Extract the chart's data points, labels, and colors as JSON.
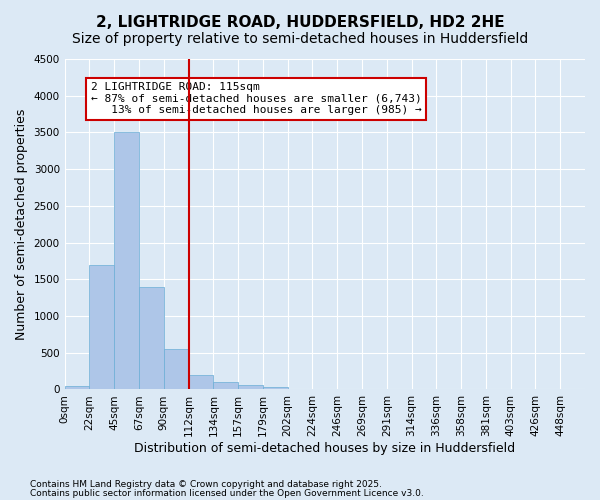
{
  "title1": "2, LIGHTRIDGE ROAD, HUDDERSFIELD, HD2 2HE",
  "title2": "Size of property relative to semi-detached houses in Huddersfield",
  "xlabel": "Distribution of semi-detached houses by size in Huddersfield",
  "ylabel": "Number of semi-detached properties",
  "footnote1": "Contains HM Land Registry data © Crown copyright and database right 2025.",
  "footnote2": "Contains public sector information licensed under the Open Government Licence v3.0.",
  "bin_labels": [
    "0sqm",
    "22sqm",
    "45sqm",
    "67sqm",
    "90sqm",
    "112sqm",
    "134sqm",
    "157sqm",
    "179sqm",
    "202sqm",
    "224sqm",
    "246sqm",
    "269sqm",
    "291sqm",
    "314sqm",
    "336sqm",
    "358sqm",
    "381sqm",
    "403sqm",
    "426sqm",
    "448sqm"
  ],
  "bar_heights": [
    50,
    1700,
    3500,
    1400,
    550,
    200,
    100,
    55,
    30,
    10,
    0,
    0,
    0,
    0,
    0,
    0,
    0,
    0,
    0,
    0
  ],
  "bar_color": "#aec6e8",
  "bar_edge_color": "#6aaed6",
  "vline_x": 5,
  "vline_color": "#cc0000",
  "annotation_box_text": "2 LIGHTRIDGE ROAD: 115sqm\n← 87% of semi-detached houses are smaller (6,743)\n   13% of semi-detached houses are larger (985) →",
  "annotation_box_color": "#cc0000",
  "annotation_box_facecolor": "white",
  "ylim": [
    0,
    4500
  ],
  "yticks": [
    0,
    500,
    1000,
    1500,
    2000,
    2500,
    3000,
    3500,
    4000,
    4500
  ],
  "bg_color": "#dce9f5",
  "plot_bg_color": "#dce9f5",
  "grid_color": "white",
  "title1_fontsize": 11,
  "title2_fontsize": 10,
  "xlabel_fontsize": 9,
  "ylabel_fontsize": 9,
  "tick_fontsize": 7.5,
  "annotation_fontsize": 8
}
